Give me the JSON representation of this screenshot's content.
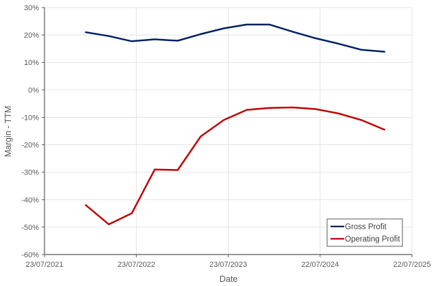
{
  "chart_data": {
    "type": "line",
    "title": "",
    "xlabel": "Date",
    "ylabel": "Margin - TTM",
    "ylim": [
      -60,
      30
    ],
    "yticks": [
      "30%",
      "20%",
      "10%",
      "0%",
      "-10%",
      "-20%",
      "-30%",
      "-40%",
      "-50%",
      "-60%"
    ],
    "xticks": [
      "23/07/2021",
      "23/07/2022",
      "23/07/2023",
      "22/07/2024",
      "22/07/2025"
    ],
    "grid": true,
    "legend_position": "lower right",
    "x_index": [
      0.45,
      0.7,
      0.95,
      1.2,
      1.45,
      1.7,
      1.95,
      2.2,
      2.45,
      2.7,
      2.95,
      3.2,
      3.45,
      3.7
    ],
    "series": [
      {
        "name": "Gross Profit",
        "color": "#002060",
        "values": [
          21.0,
          19.6,
          17.7,
          18.4,
          17.9,
          20.3,
          22.4,
          23.8,
          23.8,
          21.2,
          18.8,
          16.8,
          14.6,
          13.9
        ]
      },
      {
        "name": "Operating Profit",
        "color": "#C00000",
        "values": [
          -42.0,
          -49.0,
          -45.0,
          -29.0,
          -29.2,
          -17.0,
          -11.0,
          -7.3,
          -6.6,
          -6.4,
          -7.0,
          -8.6,
          -11.0,
          -14.5
        ]
      }
    ]
  },
  "legend": {
    "items": [
      {
        "label": "Gross Profit",
        "color": "#002060"
      },
      {
        "label": "Operating Profit",
        "color": "#C00000"
      }
    ]
  }
}
